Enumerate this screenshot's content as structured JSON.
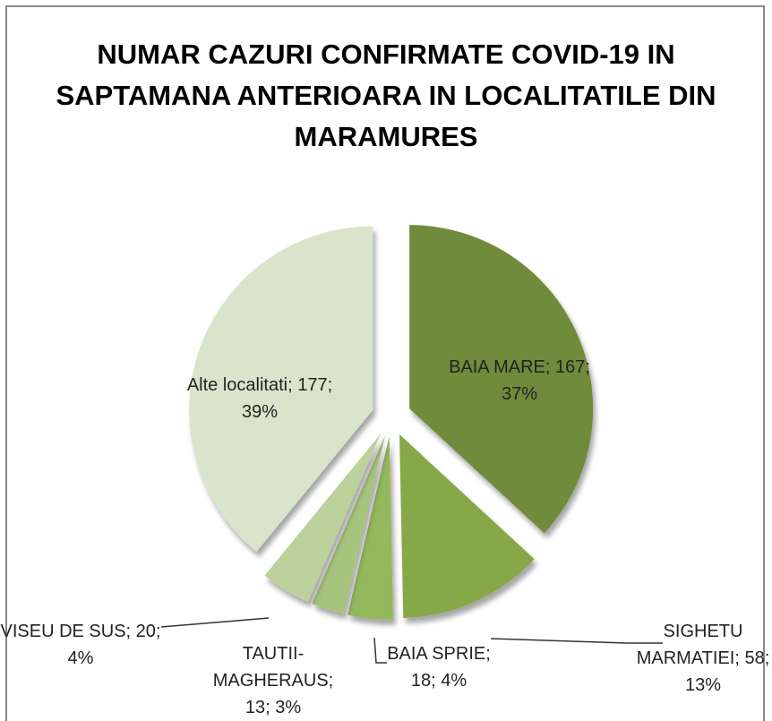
{
  "chart_data": {
    "type": "pie",
    "title": "NUMAR CAZURI CONFIRMATE COVID-19 IN SAPTAMANA ANTERIOARA IN LOCALITATILE DIN MARAMURES",
    "categories": [
      "BAIA MARE",
      "SIGHETU MARMATIEI",
      "BAIA SPRIE",
      "TAUTII-MAGHERAUS",
      "VISEU DE SUS",
      "Alte localitati"
    ],
    "values": [
      167,
      58,
      18,
      13,
      20,
      177
    ],
    "value_labels": [
      "BAIA MARE; 167; 37%",
      "SIGHETU MARMATIEI; 58; 13%",
      "BAIA SPRIE; 18; 4%",
      "TAUTII-MAGHERAUS; 13; 3%",
      "VISEU DE SUS; 20; 4%",
      "Alte localitati; 177; 39%"
    ],
    "colors": [
      "#6f8b3b",
      "#87a84a",
      "#94b85c",
      "#a7c47c",
      "#bcd19c",
      "#d9e4ca"
    ]
  }
}
